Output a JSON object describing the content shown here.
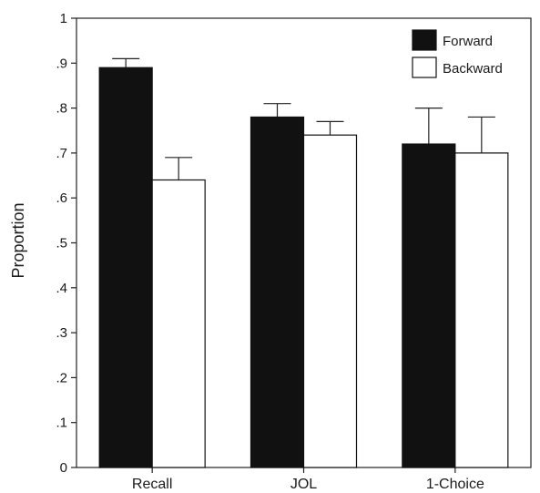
{
  "chart_data": {
    "type": "bar",
    "title": "",
    "xlabel": "",
    "ylabel": "Proportion",
    "ylim": [
      0,
      1
    ],
    "yticks": [
      {
        "value": 0,
        "label": "0"
      },
      {
        "value": 0.1,
        "label": ".1"
      },
      {
        "value": 0.2,
        "label": ".2"
      },
      {
        "value": 0.3,
        "label": ".3"
      },
      {
        "value": 0.4,
        "label": ".4"
      },
      {
        "value": 0.5,
        "label": ".5"
      },
      {
        "value": 0.6,
        "label": ".6"
      },
      {
        "value": 0.7,
        "label": ".7"
      },
      {
        "value": 0.8,
        "label": ".8"
      },
      {
        "value": 0.9,
        "label": ".9"
      },
      {
        "value": 1,
        "label": "1"
      }
    ],
    "categories": [
      "Recall",
      "JOL",
      "1-Choice"
    ],
    "series": [
      {
        "name": "Forward",
        "color": "#111111",
        "values": [
          0.89,
          0.78,
          0.72
        ],
        "errors": [
          0.02,
          0.03,
          0.08
        ]
      },
      {
        "name": "Backward",
        "color": "#ffffff",
        "values": [
          0.64,
          0.74,
          0.7
        ],
        "errors": [
          0.05,
          0.03,
          0.08
        ]
      }
    ],
    "legend": {
      "position": "top-right"
    },
    "grid": false,
    "error_bars": "upper"
  }
}
